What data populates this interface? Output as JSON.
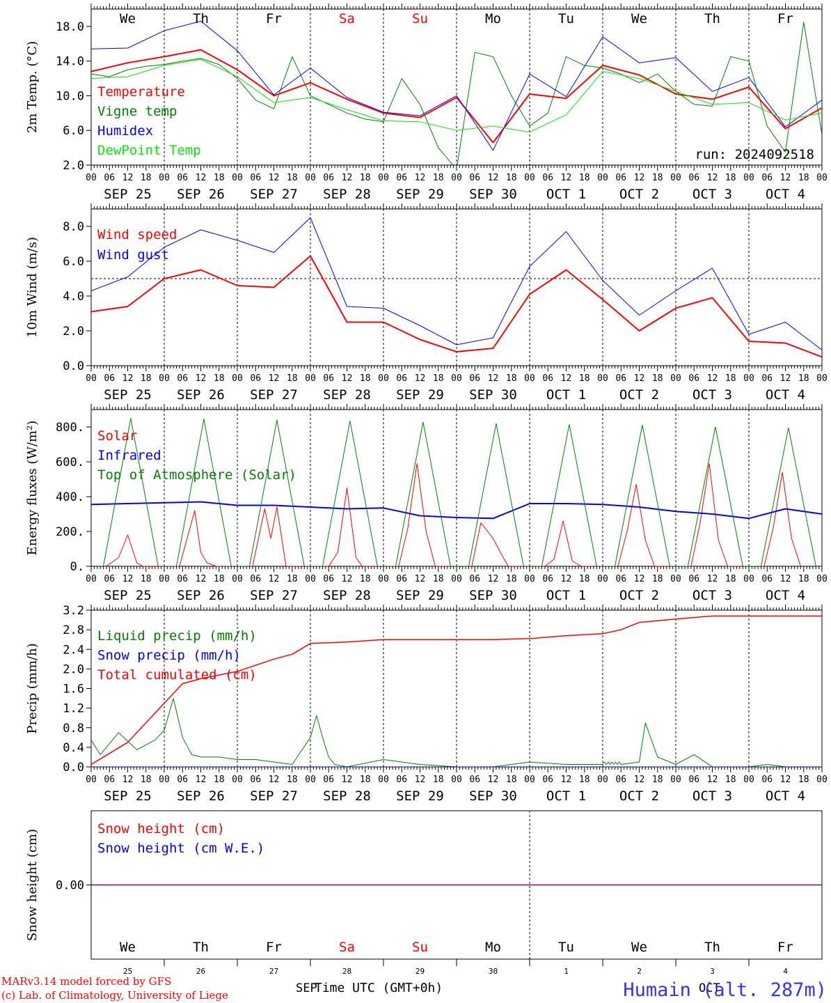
{
  "domain": "Chart",
  "footer": {
    "model_line": "MARv3.14 model forced by GFS",
    "lab_line": "(c) Lab. of Climatology, University of Liege",
    "xlabel": "Time UTC (GMT+0h)",
    "month_left": "SEP",
    "month_right": "OCT",
    "station": "Humain (alt. 287m)"
  },
  "colors": {
    "red": "#ff0000",
    "green": "#008000",
    "blue": "#0000ff",
    "light_green": "#00ee00",
    "station_blue": "#3333ff",
    "snow_line": "#800080"
  },
  "days": [
    {
      "label": "We",
      "date": "SEP 25",
      "num": "25",
      "weekend": false
    },
    {
      "label": "Th",
      "date": "SEP 26",
      "num": "26",
      "weekend": false
    },
    {
      "label": "Fr",
      "date": "SEP 27",
      "num": "27",
      "weekend": false
    },
    {
      "label": "Sa",
      "date": "SEP 28",
      "num": "28",
      "weekend": true
    },
    {
      "label": "Su",
      "date": "SEP 29",
      "num": "29",
      "weekend": true
    },
    {
      "label": "Mo",
      "date": "SEP 30",
      "num": "30",
      "weekend": false
    },
    {
      "label": "Tu",
      "date": "OCT  1",
      "num": "1",
      "weekend": false
    },
    {
      "label": "We",
      "date": "OCT  2",
      "num": "2",
      "weekend": false
    },
    {
      "label": "Th",
      "date": "OCT  3",
      "num": "3",
      "weekend": false
    },
    {
      "label": "Fr",
      "date": "OCT  4",
      "num": "4",
      "weekend": false
    }
  ],
  "hour_labels": [
    "00",
    "06",
    "12",
    "18"
  ],
  "chart_data": [
    {
      "id": "temp",
      "type": "line",
      "ylabel": "2m Temp. (°C)",
      "ylim": [
        2,
        20
      ],
      "yticks": [
        2,
        6,
        10,
        14,
        18
      ],
      "ytick_labels": [
        "2.0",
        "6.0",
        "10.0",
        "14.0",
        "18.0"
      ],
      "annotation": "run: 2024092518",
      "show_day_names": true,
      "series": [
        {
          "name": "Temperature",
          "color": "#ff0000",
          "width": 2,
          "t": [
            0,
            12,
            24,
            36,
            48,
            60,
            72,
            84,
            96,
            108,
            120,
            132,
            144,
            156,
            168,
            180,
            192,
            204,
            216,
            228,
            240
          ],
          "v": [
            12.8,
            13.8,
            14.5,
            15.3,
            13.0,
            10.0,
            11.5,
            9.6,
            8.0,
            7.5,
            9.8,
            4.6,
            10.2,
            9.7,
            13.5,
            12.4,
            10.2,
            9.6,
            11.0,
            6.2,
            8.6
          ]
        },
        {
          "name": "Vigne temp",
          "color": "#008000",
          "width": 1,
          "t": [
            0,
            6,
            12,
            18,
            24,
            30,
            36,
            42,
            48,
            54,
            60,
            66,
            72,
            78,
            84,
            90,
            96,
            102,
            108,
            114,
            120,
            126,
            132,
            138,
            144,
            150,
            156,
            162,
            168,
            174,
            180,
            186,
            192,
            198,
            204,
            210,
            216,
            222,
            228,
            234,
            240
          ],
          "v": [
            12.5,
            12.2,
            13.0,
            13.4,
            13.6,
            14.0,
            14.3,
            13.6,
            12.0,
            9.5,
            8.5,
            14.5,
            10.0,
            9.0,
            8.0,
            7.3,
            7.0,
            12.0,
            9.0,
            4.0,
            1.5,
            15.0,
            14.5,
            10.0,
            6.5,
            8.0,
            14.5,
            13.5,
            13.2,
            12.5,
            11.5,
            12.5,
            10.5,
            9.0,
            8.8,
            14.5,
            14.0,
            6.5,
            3.5,
            18.5,
            5.5
          ]
        },
        {
          "name": "Humidex",
          "color": "#0000ff",
          "width": 1,
          "t": [
            0,
            12,
            24,
            36,
            48,
            60,
            72,
            84,
            96,
            108,
            120,
            132,
            144,
            156,
            168,
            180,
            192,
            204,
            216,
            228,
            240
          ],
          "v": [
            15.4,
            15.5,
            17.5,
            18.6,
            15.2,
            10.1,
            13.2,
            9.8,
            8.1,
            7.7,
            10.0,
            3.7,
            12.5,
            9.9,
            16.8,
            13.8,
            14.4,
            10.5,
            12.1,
            6.4,
            9.5
          ]
        },
        {
          "name": "DewPoint Temp",
          "color": "#00ee00",
          "width": 1,
          "t": [
            0,
            12,
            24,
            36,
            48,
            60,
            72,
            84,
            96,
            108,
            120,
            132,
            144,
            156,
            168,
            180,
            192,
            204,
            216,
            228,
            240
          ],
          "v": [
            12.0,
            12.2,
            13.5,
            14.2,
            12.2,
            9.2,
            9.8,
            8.4,
            7.1,
            7.0,
            6.0,
            6.5,
            5.8,
            7.8,
            12.8,
            12.0,
            10.5,
            9.0,
            9.2,
            7.2,
            8.0
          ]
        }
      ]
    },
    {
      "id": "wind",
      "type": "line",
      "ylabel": "10m Wind (m/s)",
      "ylim": [
        0,
        9
      ],
      "yticks": [
        0,
        2,
        4,
        6,
        8
      ],
      "ytick_labels": [
        "0.0",
        "2.0",
        "4.0",
        "6.0",
        "8.0"
      ],
      "ref_line": 5,
      "series": [
        {
          "name": "Wind speed",
          "color": "#ff0000",
          "width": 2,
          "t": [
            0,
            12,
            24,
            36,
            48,
            60,
            72,
            84,
            96,
            108,
            120,
            132,
            144,
            156,
            168,
            180,
            192,
            204,
            216,
            228,
            240
          ],
          "v": [
            3.1,
            3.4,
            5.0,
            5.5,
            4.6,
            4.5,
            6.3,
            2.5,
            2.5,
            1.5,
            0.8,
            1.0,
            4.1,
            5.5,
            3.8,
            2.0,
            3.3,
            3.9,
            1.4,
            1.3,
            0.5
          ]
        },
        {
          "name": "Wind gust",
          "color": "#0000ff",
          "width": 1,
          "t": [
            0,
            12,
            24,
            36,
            48,
            60,
            72,
            84,
            96,
            108,
            120,
            132,
            144,
            156,
            168,
            180,
            192,
            204,
            216,
            228,
            240
          ],
          "v": [
            4.3,
            5.1,
            6.8,
            7.8,
            7.2,
            6.5,
            8.5,
            3.4,
            3.3,
            2.3,
            1.2,
            1.6,
            5.7,
            7.7,
            4.9,
            2.9,
            4.3,
            5.6,
            1.8,
            2.5,
            0.9
          ]
        }
      ]
    },
    {
      "id": "energy",
      "type": "line",
      "ylabel": "Energy fluxes (W/m²)",
      "ylim": [
        0,
        900
      ],
      "yticks": [
        0,
        200,
        400,
        600,
        800
      ],
      "ytick_labels": [
        "0.",
        "200.",
        "400.",
        "600.",
        "800."
      ],
      "series": [
        {
          "name": "Solar",
          "color": "#ff0000",
          "width": 1,
          "t": [
            5,
            9,
            12,
            15,
            17,
            29,
            34,
            36,
            38,
            41,
            53,
            57,
            59,
            61,
            64,
            78,
            81,
            84,
            87,
            89,
            101,
            104,
            107,
            110,
            113,
            125,
            128,
            132,
            135,
            137,
            149,
            152,
            155,
            158,
            161,
            173,
            176,
            179,
            182,
            185,
            197,
            200,
            203,
            206,
            209,
            221,
            224,
            227,
            230,
            233
          ],
          "v": [
            0,
            50,
            180,
            20,
            0,
            0,
            320,
            80,
            20,
            0,
            0,
            330,
            160,
            340,
            0,
            0,
            80,
            450,
            50,
            0,
            0,
            220,
            590,
            200,
            0,
            0,
            250,
            160,
            60,
            0,
            0,
            40,
            260,
            30,
            0,
            0,
            200,
            470,
            150,
            0,
            0,
            250,
            590,
            150,
            0,
            0,
            220,
            540,
            160,
            0
          ]
        },
        {
          "name": "Infrared",
          "color": "#0000ff",
          "width": 2,
          "t": [
            0,
            12,
            24,
            36,
            48,
            60,
            72,
            84,
            96,
            108,
            120,
            132,
            144,
            156,
            168,
            180,
            192,
            204,
            216,
            228,
            240
          ],
          "v": [
            355,
            360,
            365,
            370,
            350,
            350,
            340,
            330,
            335,
            290,
            280,
            275,
            360,
            360,
            355,
            340,
            315,
            300,
            275,
            330,
            300
          ]
        },
        {
          "name": "Top of Atmosphere (Solar)",
          "color": "#008000",
          "width": 1,
          "t": [
            4,
            13,
            22,
            28,
            37,
            46,
            52,
            61,
            70,
            76,
            85,
            94,
            100,
            109,
            118,
            124,
            133,
            142,
            148,
            157,
            166,
            172,
            181,
            190,
            196,
            205,
            214,
            220,
            229,
            238
          ],
          "v": [
            0,
            850,
            0,
            0,
            845,
            0,
            0,
            840,
            0,
            0,
            835,
            0,
            0,
            828,
            0,
            0,
            820,
            0,
            0,
            815,
            0,
            0,
            810,
            0,
            0,
            800,
            0,
            0,
            795,
            0
          ]
        }
      ]
    },
    {
      "id": "precip",
      "type": "line",
      "ylabel": "Precip (mm/h)",
      "ylim": [
        0,
        3.2
      ],
      "yticks": [
        0,
        0.4,
        0.8,
        1.2,
        1.6,
        2.0,
        2.4,
        2.8,
        3.2
      ],
      "ytick_labels": [
        "0.0",
        "0.4",
        "0.8",
        "1.2",
        "1.6",
        "2.0",
        "2.4",
        "2.8",
        "3.2"
      ],
      "series": [
        {
          "name": "Liquid precip (mm/h)",
          "color": "#008000",
          "width": 1,
          "t": [
            0,
            3,
            9,
            15,
            21,
            24,
            27,
            30,
            33,
            36,
            42,
            48,
            54,
            60,
            66,
            72,
            74,
            76,
            78,
            80,
            84,
            96,
            108,
            120,
            132,
            144,
            156,
            168,
            168.6,
            169.2,
            169.8,
            170.4,
            171,
            171.6,
            172.2,
            172.8,
            173.4,
            174,
            180,
            182,
            186,
            192,
            198,
            204,
            210,
            216,
            222,
            228,
            234,
            240
          ],
          "v": [
            0.55,
            0.25,
            0.7,
            0.35,
            0.55,
            0.75,
            1.4,
            0.6,
            0.25,
            0.2,
            0.2,
            0.15,
            0.15,
            0.1,
            0.05,
            0.6,
            1.05,
            0.6,
            0.2,
            0.05,
            0.0,
            0.15,
            0.05,
            0.0,
            0.0,
            0.1,
            0.05,
            0.05,
            0.1,
            0.05,
            0.1,
            0.05,
            0.1,
            0.05,
            0.1,
            0.05,
            0.1,
            0.05,
            0.1,
            0.9,
            0.2,
            0.05,
            0.25,
            0.0,
            0.0,
            0.0,
            0.05,
            0.0,
            0.0,
            0.0
          ]
        },
        {
          "name": "Snow precip (mm/h)",
          "color": "#0000ff",
          "width": 1,
          "t": [
            0,
            240
          ],
          "v": [
            0,
            0
          ]
        },
        {
          "name": "Total cumulated (cm)",
          "color": "#ff0000",
          "width": 1.5,
          "t": [
            0,
            12,
            24,
            30,
            36,
            48,
            60,
            66,
            72,
            84,
            96,
            108,
            120,
            132,
            144,
            156,
            168,
            174,
            180,
            192,
            204,
            216,
            228,
            240
          ],
          "v": [
            0.05,
            0.5,
            1.3,
            1.7,
            1.8,
            1.95,
            2.2,
            2.3,
            2.52,
            2.55,
            2.6,
            2.6,
            2.6,
            2.6,
            2.62,
            2.68,
            2.72,
            2.8,
            2.95,
            3.02,
            3.08,
            3.08,
            3.08,
            3.08
          ]
        }
      ]
    },
    {
      "id": "snow",
      "type": "line",
      "ylabel": "Snow height (cm)",
      "ylim": [
        -1,
        1
      ],
      "yticks": [
        0
      ],
      "ytick_labels": [
        "0.00"
      ],
      "series": [
        {
          "name": "Snow height (cm)",
          "color": "#ff0000",
          "width": 1,
          "t": [
            0,
            240
          ],
          "v": [
            0,
            0
          ]
        },
        {
          "name": "Snow height (cm W.E.)",
          "color": "#0000ff",
          "width": 1,
          "t": [
            0,
            240
          ],
          "v": [
            0,
            0
          ]
        }
      ]
    }
  ]
}
